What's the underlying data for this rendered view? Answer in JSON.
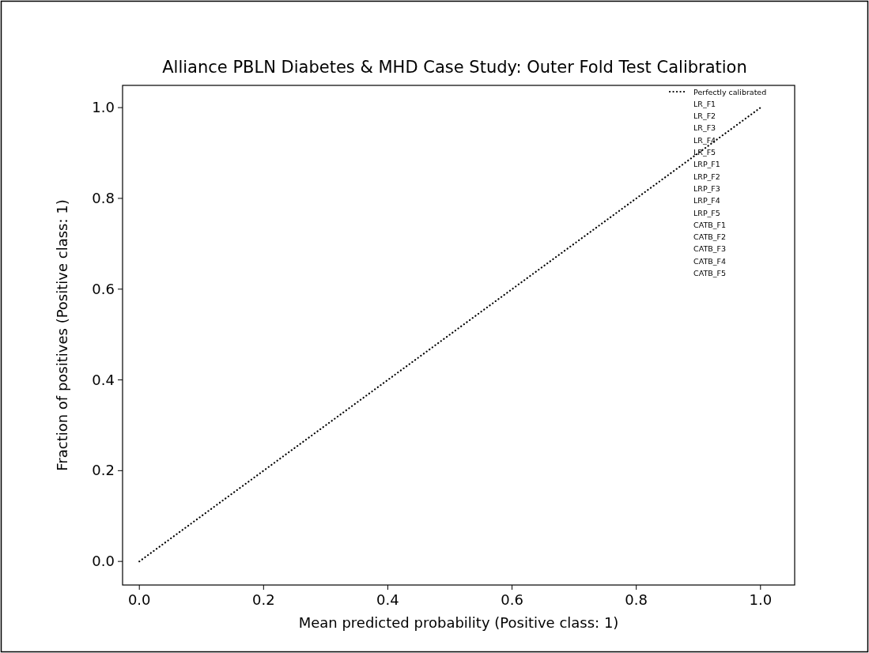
{
  "chart_data": {
    "type": "line",
    "title": "Alliance PBLN Diabetes & MHD Case Study: Outer Fold Test Calibration",
    "xlabel": "Mean predicted probability (Positive class: 1)",
    "ylabel": "Fraction of positives (Positive class: 1)",
    "xlim": [
      -0.027,
      1.055
    ],
    "ylim": [
      -0.052,
      1.049
    ],
    "xticks": [
      {
        "value": 0,
        "label": "0.0"
      },
      {
        "value": 0.2,
        "label": "0.2"
      },
      {
        "value": 0.4,
        "label": "0.4"
      },
      {
        "value": 0.6,
        "label": "0.6"
      },
      {
        "value": 0.8,
        "label": "0.8"
      },
      {
        "value": 1,
        "label": "1.0"
      }
    ],
    "yticks": [
      {
        "value": 0,
        "label": "0.0"
      },
      {
        "value": 0.2,
        "label": "0.2"
      },
      {
        "value": 0.4,
        "label": "0.4"
      },
      {
        "value": 0.6,
        "label": "0.6"
      },
      {
        "value": 0.8,
        "label": "0.8"
      },
      {
        "value": 1,
        "label": "1.0"
      }
    ],
    "legend": "top right",
    "grid": false,
    "series": [
      {
        "name": "Perfectly calibrated",
        "color": "#000000",
        "line_style": "dotted",
        "x": [
          0,
          1
        ],
        "values": [
          0,
          1
        ]
      },
      {
        "name": "LR_F1"
      },
      {
        "name": "LR_F2"
      },
      {
        "name": "LR_F3"
      },
      {
        "name": "LR_F4"
      },
      {
        "name": "LR_F5"
      },
      {
        "name": "LRP_F1"
      },
      {
        "name": "LRP_F2"
      },
      {
        "name": "LRP_F3"
      },
      {
        "name": "LRP_F4"
      },
      {
        "name": "LRP_F5"
      },
      {
        "name": "CATB_F1"
      },
      {
        "name": "CATB_F2"
      },
      {
        "name": "CATB_F3"
      },
      {
        "name": "CATB_F4"
      },
      {
        "name": "CATB_F5"
      }
    ]
  }
}
